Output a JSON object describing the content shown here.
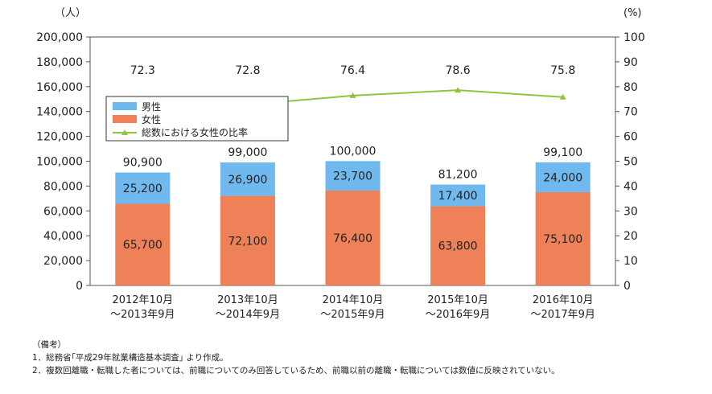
{
  "chart_data": {
    "type": "bar",
    "stacked": true,
    "categories": [
      [
        "2012年10月",
        "～2013年9月"
      ],
      [
        "2013年10月",
        "～2014年9月"
      ],
      [
        "2014年10月",
        "～2015年9月"
      ],
      [
        "2015年10月",
        "～2016年9月"
      ],
      [
        "2016年10月",
        "～2017年9月"
      ]
    ],
    "series": [
      {
        "name": "女性",
        "values": [
          65700,
          72100,
          76400,
          63800,
          75100
        ],
        "color": "#ee8157"
      },
      {
        "name": "男性",
        "values": [
          25200,
          26900,
          23700,
          17400,
          24000
        ],
        "color": "#70b9ee"
      }
    ],
    "totals": [
      90900,
      99000,
      100000,
      81200,
      99100
    ],
    "line_series": {
      "name": "総数における女性の比率",
      "values": [
        72.3,
        72.8,
        76.4,
        78.6,
        75.8
      ],
      "color": "#8cc63f",
      "axis": "right"
    },
    "legend_order": [
      "男性",
      "女性",
      "総数における女性の比率"
    ],
    "legend_position": "upper-left",
    "ylabel": "（人）",
    "y2label": "(%)",
    "ylim": [
      0,
      200000
    ],
    "y2lim": [
      0,
      100
    ],
    "yticks": [
      "0",
      "20,000",
      "40,000",
      "60,000",
      "80,000",
      "100,000",
      "120,000",
      "140,000",
      "160,000",
      "180,000",
      "200,000"
    ],
    "y2ticks": [
      "0",
      "10",
      "20",
      "30",
      "40",
      "50",
      "60",
      "70",
      "80",
      "90",
      "100"
    ],
    "grid": false,
    "border": true
  },
  "notes": {
    "heading": "（備考）",
    "items": [
      "1．総務省｢平成29年就業構造基本調査｣ より作成。",
      "2．複数回離職・転職した者については、前職についてのみ回答しているため、前職以前の離職・転職については数値に反映されていない。"
    ]
  }
}
